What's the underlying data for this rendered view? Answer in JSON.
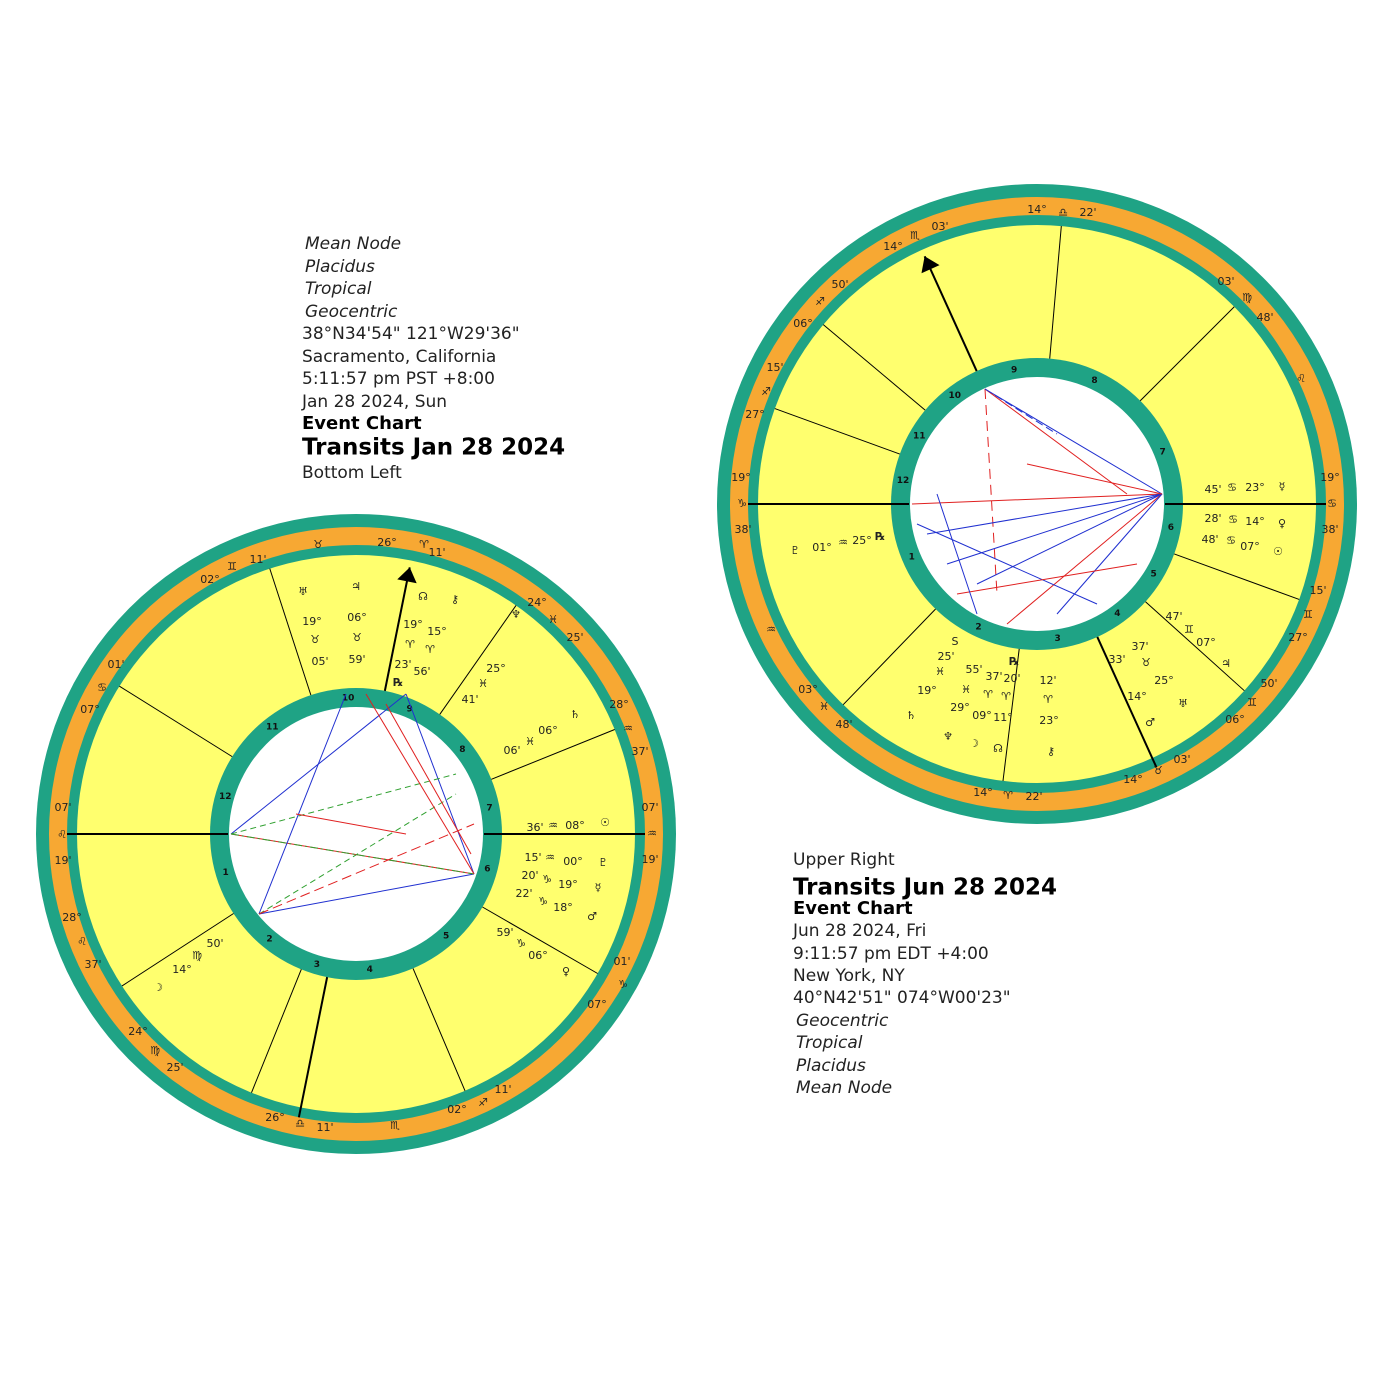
{
  "left_chart": {
    "info": [
      "Mean Node",
      "Placidus",
      "Tropical",
      "Geocentric",
      "38°N34'54\" 121°W29'36\"",
      "Sacramento, California",
      "5:11:57 pm  PST +8:00",
      "Jan 28 2024, Sun",
      "Event Chart",
      "Transits Jan 28 2024",
      "Bottom Left"
    ],
    "house_numbers": [
      "1",
      "2",
      "3",
      "4",
      "5",
      "6",
      "7",
      "8",
      "9",
      "10",
      "11",
      "12"
    ],
    "ring_labels": [
      "11'",
      "♊",
      "02°",
      "♉",
      "26°",
      "♈",
      "11'",
      "24°",
      "♓",
      "25'",
      "28°",
      "♒",
      "37'",
      "07'",
      "♒",
      "19'",
      "01'",
      "♑",
      "07°",
      "11'",
      "♐",
      "02°",
      "11'",
      "♎",
      "26°",
      "♏",
      "25'",
      "♍",
      "24°",
      "37'",
      "♌",
      "28°",
      "19'",
      "♌",
      "07'",
      "07°",
      "♋",
      "01'"
    ],
    "planet_labels": [
      "♅",
      "♃",
      "19°",
      "06°",
      "♉",
      "♉",
      "05'",
      "59'",
      "☊",
      "⚷",
      "19°",
      "15°",
      "♈",
      "♈",
      "23'",
      "56'",
      "℞",
      "♆",
      "25°",
      "♓",
      "41'",
      "♄",
      "06°",
      "♓",
      "06'",
      "☉",
      "08°",
      "♒",
      "36'",
      "♇",
      "00°",
      "♒",
      "15'",
      "☿",
      "19°",
      "♑",
      "20'",
      "♂",
      "18°",
      "♑",
      "22'",
      "♀",
      "06°",
      "♑",
      "59'",
      "☽",
      "14°",
      "♍",
      "50'"
    ]
  },
  "right_chart": {
    "info": [
      "Upper Right",
      "Transits Jun 28 2024",
      "Event Chart",
      "Jun 28 2024, Fri",
      "9:11:57 pm  EDT +4:00",
      "New York, NY",
      "40°N42'51\" 074°W00'23\"",
      "Geocentric",
      "Tropical",
      "Placidus",
      "Mean Node"
    ],
    "house_numbers": [
      "1",
      "2",
      "3",
      "4",
      "5",
      "6",
      "7",
      "8",
      "9",
      "10",
      "11",
      "12"
    ],
    "ring_labels": [
      "14°",
      "♎",
      "22'",
      "03'",
      "♏",
      "14°",
      "50'",
      "♐",
      "06°",
      "15'",
      "♐",
      "27°",
      "19°",
      "♑",
      "38'",
      "♒",
      "03°",
      "♓",
      "48'",
      "14°",
      "♈",
      "22'",
      "14°",
      "♉",
      "03'",
      "06°",
      "♊",
      "50'",
      "27°",
      "♊",
      "15'",
      "19°",
      "♋",
      "38'",
      "03'",
      "♍",
      "48'",
      "♌"
    ],
    "planet_labels": [
      "☿",
      "23°",
      "♋",
      "45'",
      "♀",
      "14°",
      "♋",
      "28'",
      "☉",
      "07°",
      "♋",
      "48'",
      "♃",
      "07°",
      "♊",
      "47'",
      "♅",
      "25°",
      "♉",
      "37'",
      "♂",
      "14°",
      "33'",
      "⚷",
      "23°",
      "♈",
      "12'",
      "☊",
      "11°",
      "♈",
      "20'",
      "℞",
      "☽",
      "09°",
      "♈",
      "37'",
      "♆",
      "29°",
      "♓",
      "55'",
      "♄",
      "19°",
      "♓",
      "25'",
      "S",
      "♇",
      "01°",
      "♒",
      "25°",
      "℞"
    ]
  }
}
